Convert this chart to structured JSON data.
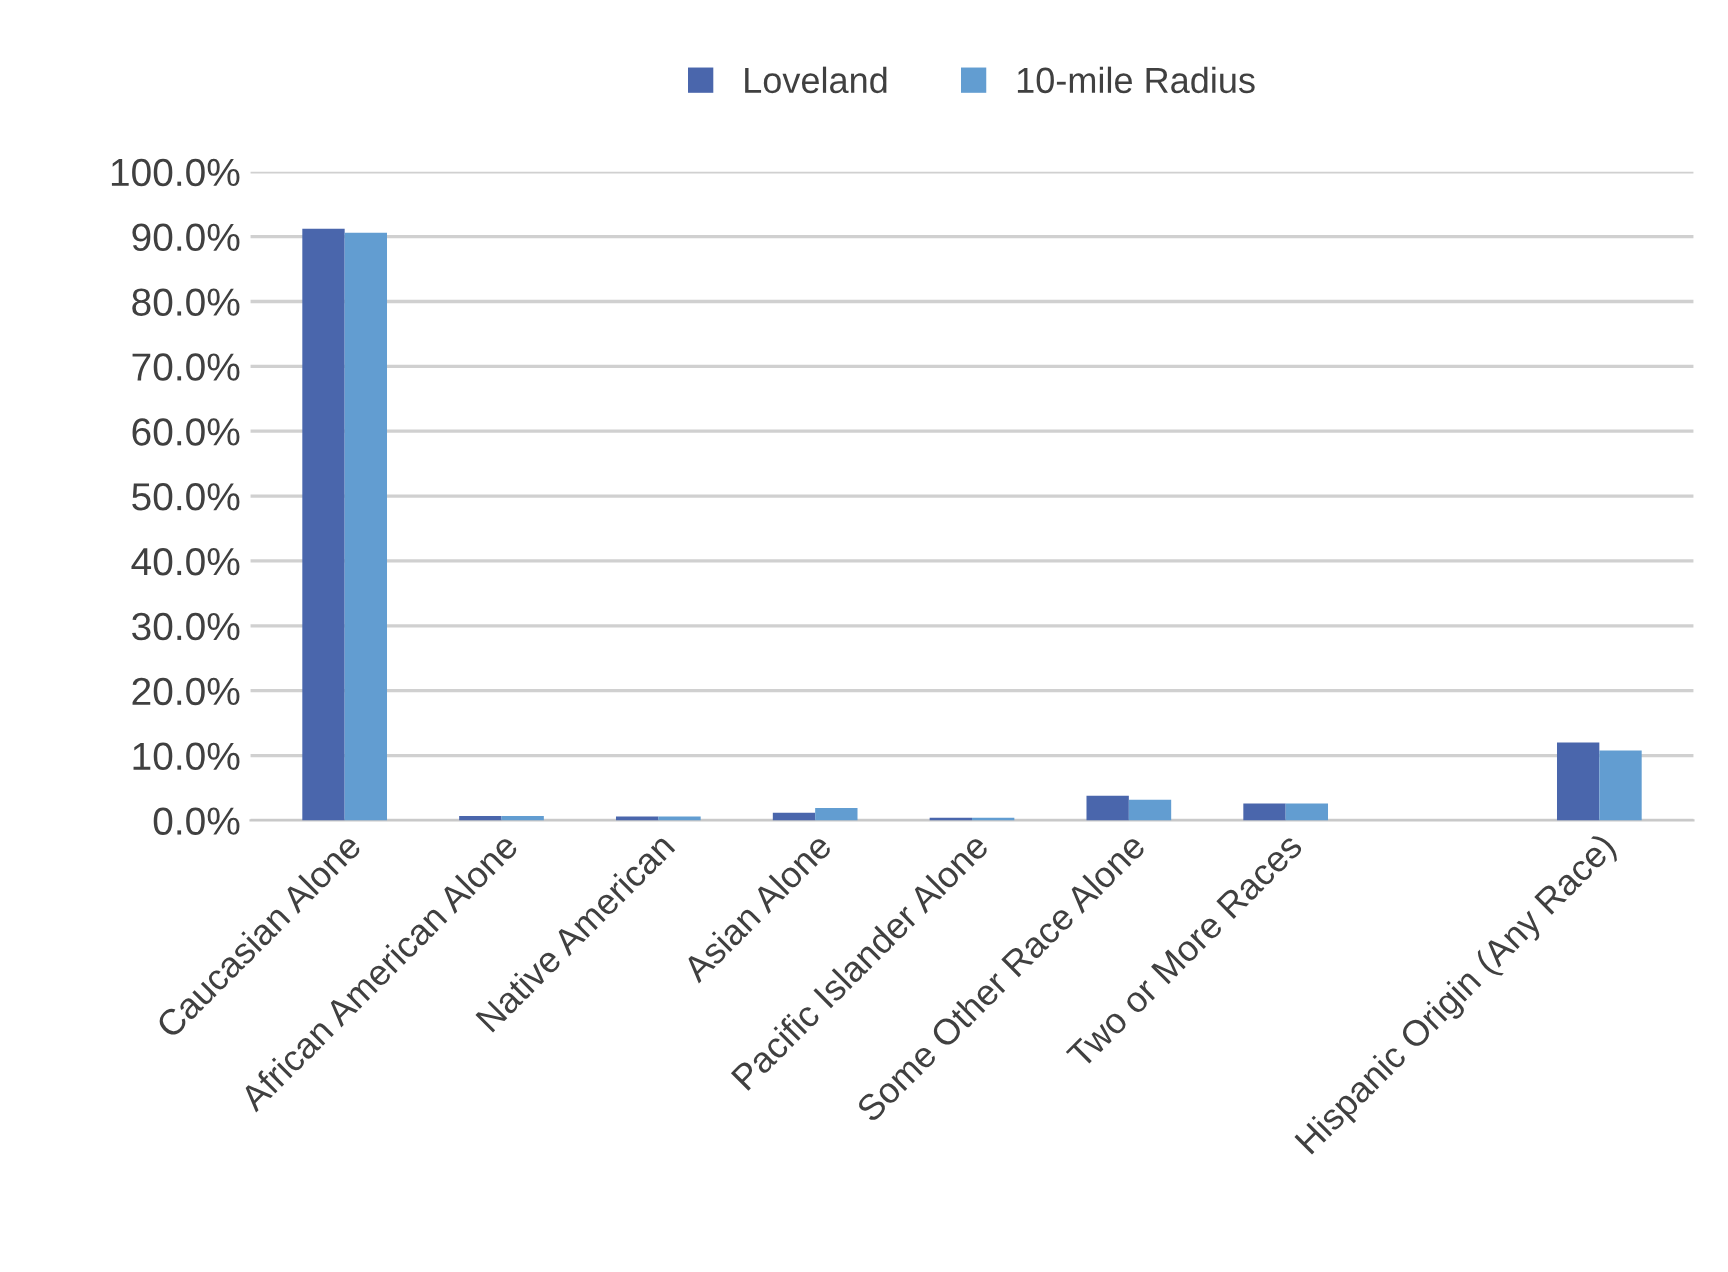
{
  "chart_data": {
    "type": "bar",
    "categories": [
      "Caucasian Alone",
      "African American Alone",
      "Native American",
      "Asian Alone",
      "Pacific Islander Alone",
      "Some Other Race Alone",
      "Two or More Races",
      null,
      "Hispanic Origin (Any Race)"
    ],
    "series": [
      {
        "name": "Loveland",
        "color": "#4a66ac",
        "values": [
          91.2,
          0.7,
          0.6,
          1.2,
          0.4,
          3.8,
          2.6,
          null,
          12.0
        ]
      },
      {
        "name": "10-mile Radius",
        "color": "#629dd1",
        "values": [
          90.6,
          0.7,
          0.6,
          1.9,
          0.4,
          3.2,
          2.6,
          null,
          10.8
        ]
      }
    ],
    "ylim": [
      0,
      100
    ],
    "yticks": [
      {
        "value": 0,
        "label": "0.0%"
      },
      {
        "value": 10,
        "label": "10.0%"
      },
      {
        "value": 20,
        "label": "20.0%"
      },
      {
        "value": 30,
        "label": "30.0%"
      },
      {
        "value": 40,
        "label": "40.0%"
      },
      {
        "value": 50,
        "label": "50.0%"
      },
      {
        "value": 60,
        "label": "60.0%"
      },
      {
        "value": 70,
        "label": "70.0%"
      },
      {
        "value": 80,
        "label": "80.0%"
      },
      {
        "value": 90,
        "label": "90.0%"
      },
      {
        "value": 100,
        "label": "100.0%"
      }
    ],
    "grid": "y",
    "legend": "top"
  }
}
